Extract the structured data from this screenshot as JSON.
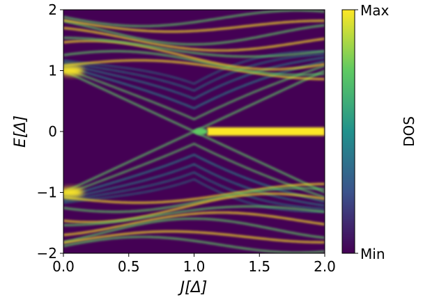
{
  "chart_data": {
    "type": "heatmap",
    "title": "",
    "xlabel": "J[Δ]",
    "ylabel": "E[Δ]",
    "xlim": [
      0.0,
      2.0
    ],
    "ylim": [
      -2,
      2
    ],
    "x_ticks": [
      "0.0",
      "0.5",
      "1.0",
      "1.5",
      "2.0"
    ],
    "y_ticks": [
      "−2",
      "−1",
      "0",
      "1",
      "2"
    ],
    "colorbar": {
      "label": "DOS",
      "max_label": "Max",
      "min_label": "Min",
      "colormap": "viridis",
      "colors": [
        "#440154",
        "#3b528b",
        "#21918c",
        "#5ec962",
        "#fde725"
      ]
    },
    "features": {
      "gap_edge_energy": 1.0,
      "zero_mode_onset_J": 1.05,
      "zero_mode_energy": 0.0,
      "background_color": "#440154"
    }
  }
}
